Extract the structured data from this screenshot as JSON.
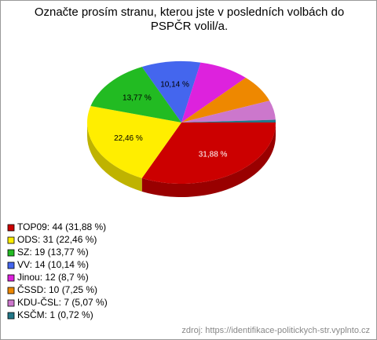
{
  "chart_data": {
    "type": "pie",
    "title": "Označte prosím stranu, kterou jste v posledních volbách do PSPČR volil/a.",
    "categories": [
      "TOP09",
      "ODS",
      "SZ",
      "VV",
      "Jinou",
      "ČSSD",
      "KDU-ČSL",
      "KSČM"
    ],
    "values": [
      31.88,
      22.46,
      13.77,
      10.14,
      8.7,
      7.25,
      5.07,
      0.72
    ],
    "value_labels": [
      "31,88 %",
      "22,46 %",
      "13,77 %",
      "10,14 %",
      null,
      null,
      null,
      null
    ],
    "legend": [
      "TOP09: 44 (31,88 %)",
      "ODS: 31 (22,46 %)",
      "SZ: 19 (13,77 %)",
      "VV: 14 (10,14 %)",
      "Jinou: 12 (8,7 %)",
      "ČSSD: 10 (7,25 %)",
      "KDU-ČSL: 7 (5,07 %)",
      "KSČM: 1 (0,72 %)"
    ],
    "colors": [
      "#cc0000",
      "#ffee00",
      "#22bb22",
      "#4466ee",
      "#dd22dd",
      "#ee8800",
      "#cc77cc",
      "#227788"
    ],
    "source": "zdroj: https://identifikace-politickych-str.vyplnto.cz"
  }
}
